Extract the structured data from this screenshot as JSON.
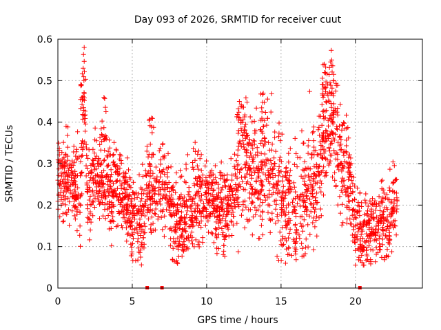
{
  "chart_data": {
    "type": "scatter",
    "title": "Day 093 of 2026, SRMTID for receiver cuut",
    "xlabel": "GPS time / hours",
    "ylabel": "SRMTID / TECUs",
    "xlim": [
      0,
      24.5
    ],
    "ylim": [
      0,
      0.6
    ],
    "xticks": [
      0,
      5,
      10,
      15,
      20
    ],
    "yticks": [
      0,
      0.1,
      0.2,
      0.3,
      0.4,
      0.5,
      0.6
    ],
    "xtick_labels": [
      "0",
      "5",
      "10",
      "15",
      "20"
    ],
    "ytick_labels": [
      "0",
      "0.1",
      "0.2",
      "0.3",
      "0.4",
      "0.5",
      "0.6"
    ],
    "grid": true,
    "marker": "+",
    "color": "#ff0000",
    "series_summary": [
      {
        "x": 0.0,
        "y": 0.26
      },
      {
        "x": 0.5,
        "y": 0.27
      },
      {
        "x": 1.0,
        "y": 0.25
      },
      {
        "x": 1.5,
        "y": 0.22
      },
      {
        "x": 1.75,
        "y": 0.5
      },
      {
        "x": 2.0,
        "y": 0.23
      },
      {
        "x": 2.5,
        "y": 0.26
      },
      {
        "x": 3.0,
        "y": 0.25
      },
      {
        "x": 3.5,
        "y": 0.24
      },
      {
        "x": 4.0,
        "y": 0.24
      },
      {
        "x": 4.5,
        "y": 0.22
      },
      {
        "x": 5.0,
        "y": 0.18
      },
      {
        "x": 5.5,
        "y": 0.15
      },
      {
        "x": 6.0,
        "y": 0.22
      },
      {
        "x": 6.5,
        "y": 0.24
      },
      {
        "x": 7.0,
        "y": 0.25
      },
      {
        "x": 7.5,
        "y": 0.2
      },
      {
        "x": 8.0,
        "y": 0.16
      },
      {
        "x": 8.5,
        "y": 0.17
      },
      {
        "x": 9.0,
        "y": 0.2
      },
      {
        "x": 9.5,
        "y": 0.22
      },
      {
        "x": 10.0,
        "y": 0.22
      },
      {
        "x": 10.5,
        "y": 0.2
      },
      {
        "x": 11.0,
        "y": 0.19
      },
      {
        "x": 11.5,
        "y": 0.2
      },
      {
        "x": 12.0,
        "y": 0.24
      },
      {
        "x": 12.5,
        "y": 0.34
      },
      {
        "x": 13.0,
        "y": 0.28
      },
      {
        "x": 13.5,
        "y": 0.27
      },
      {
        "x": 14.0,
        "y": 0.3
      },
      {
        "x": 14.5,
        "y": 0.25
      },
      {
        "x": 15.0,
        "y": 0.22
      },
      {
        "x": 15.5,
        "y": 0.2
      },
      {
        "x": 16.0,
        "y": 0.18
      },
      {
        "x": 16.5,
        "y": 0.22
      },
      {
        "x": 17.0,
        "y": 0.25
      },
      {
        "x": 17.5,
        "y": 0.28
      },
      {
        "x": 18.0,
        "y": 0.38
      },
      {
        "x": 18.5,
        "y": 0.4
      },
      {
        "x": 19.0,
        "y": 0.3
      },
      {
        "x": 19.5,
        "y": 0.28
      },
      {
        "x": 20.0,
        "y": 0.15
      },
      {
        "x": 20.5,
        "y": 0.12
      },
      {
        "x": 21.0,
        "y": 0.13
      },
      {
        "x": 21.5,
        "y": 0.16
      },
      {
        "x": 22.0,
        "y": 0.14
      },
      {
        "x": 22.5,
        "y": 0.19
      },
      {
        "x": 22.8,
        "y": 0.21
      }
    ],
    "spikes": [
      {
        "x": 1.7,
        "y": 0.53
      },
      {
        "x": 3.1,
        "y": 0.46
      },
      {
        "x": 6.3,
        "y": 0.41
      },
      {
        "x": 12.2,
        "y": 0.45
      },
      {
        "x": 13.8,
        "y": 0.47
      },
      {
        "x": 17.9,
        "y": 0.54
      },
      {
        "x": 18.4,
        "y": 0.55
      },
      {
        "x": 21.8,
        "y": 0.26
      }
    ],
    "zero_points": [
      {
        "x": 6.0,
        "y": 0.0
      },
      {
        "x": 7.0,
        "y": 0.0
      },
      {
        "x": 20.3,
        "y": 0.0
      }
    ]
  }
}
